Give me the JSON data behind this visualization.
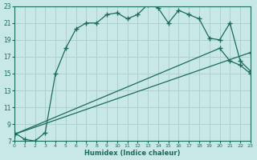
{
  "xlabel": "Humidex (Indice chaleur)",
  "background_color": "#c8e8e8",
  "line_color": "#1a6b5a",
  "grid_color": "#b0d0d0",
  "xlim": [
    0,
    23
  ],
  "ylim": [
    7,
    23
  ],
  "xticks": [
    0,
    1,
    2,
    3,
    4,
    5,
    6,
    7,
    8,
    9,
    10,
    11,
    12,
    13,
    14,
    15,
    16,
    17,
    18,
    19,
    20,
    21,
    22,
    23
  ],
  "yticks": [
    7,
    9,
    11,
    13,
    15,
    17,
    19,
    21,
    23
  ],
  "line1_x": [
    0,
    1,
    2,
    3,
    4,
    5,
    6,
    7,
    8,
    9,
    10,
    11,
    12,
    13,
    14,
    15,
    16,
    17,
    18,
    19,
    20,
    21,
    22,
    23
  ],
  "line1_y": [
    8.0,
    7.2,
    7.0,
    8.0,
    15.0,
    18.0,
    20.3,
    21.0,
    21.0,
    22.0,
    22.2,
    21.5,
    22.0,
    23.2,
    22.8,
    21.0,
    22.5,
    22.0,
    21.5,
    19.2,
    19.0,
    21.0,
    16.5,
    15.3
  ],
  "line2_x": [
    0,
    23
  ],
  "line2_y": [
    7.8,
    17.5
  ],
  "line3_x": [
    0,
    20,
    21,
    22,
    23
  ],
  "line3_y": [
    7.8,
    18.0,
    16.5,
    16.0,
    15.0
  ]
}
